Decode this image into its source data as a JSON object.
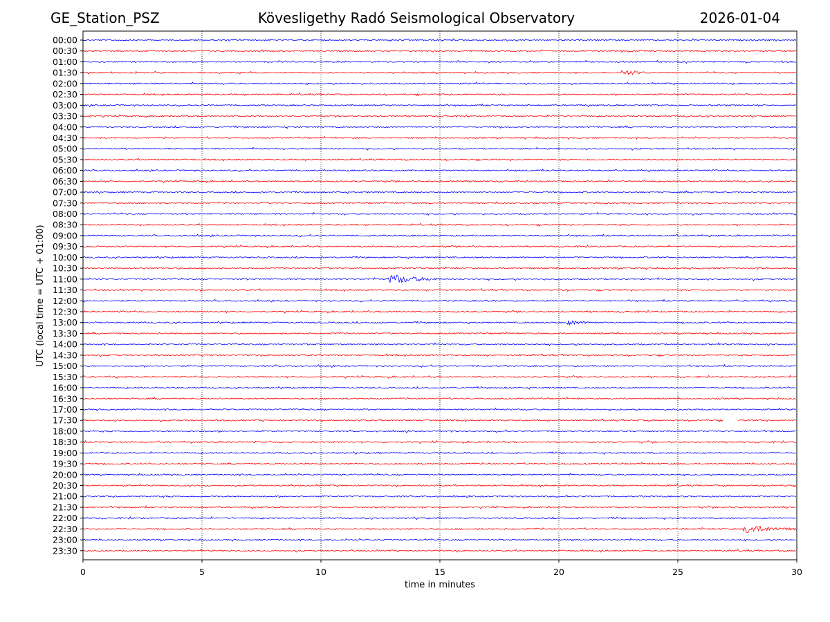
{
  "header": {
    "station": "GE_Station_PSZ",
    "title": "Kövesligethy Radó Seismological Observatory",
    "date": "2026-01-04"
  },
  "colors": {
    "even_trace": "#0000ff",
    "odd_trace": "#ff0000",
    "grid": "#000000",
    "axes": "#000000"
  },
  "chart_data": {
    "type": "line",
    "title": "Kövesligethy Radó Seismological Observatory",
    "xlabel": "time in minutes",
    "ylabel": "UTC (local time = UTC + 01:00)",
    "xlim": [
      0,
      30
    ],
    "x_ticks": [
      0,
      5,
      10,
      15,
      20,
      25,
      30
    ],
    "grid": "vertical dotted lines at x ticks",
    "row_labels": [
      "00:00",
      "00:30",
      "01:00",
      "01:30",
      "02:00",
      "02:30",
      "03:00",
      "03:30",
      "04:00",
      "04:30",
      "05:00",
      "05:30",
      "06:00",
      "06:30",
      "07:00",
      "07:30",
      "08:00",
      "08:30",
      "09:00",
      "09:30",
      "10:00",
      "10:30",
      "11:00",
      "11:30",
      "12:00",
      "12:30",
      "13:00",
      "13:30",
      "14:00",
      "14:30",
      "15:00",
      "15:30",
      "16:00",
      "16:30",
      "17:00",
      "17:30",
      "18:00",
      "18:30",
      "19:00",
      "19:30",
      "20:00",
      "20:30",
      "21:00",
      "21:30",
      "22:00",
      "22:30",
      "23:00",
      "23:30"
    ],
    "trace_colors": "alternating blue (on the hour) / red (half hour)",
    "events": [
      {
        "row": "01:30",
        "start_min": 22.6,
        "duration_min": 1.2,
        "amplitude": 4
      },
      {
        "row": "11:00",
        "start_min": 12.8,
        "duration_min": 2.2,
        "amplitude": 7
      },
      {
        "row": "13:00",
        "start_min": 20.3,
        "duration_min": 1.5,
        "amplitude": 3
      },
      {
        "row": "22:30",
        "start_min": 27.7,
        "duration_min": 2.3,
        "amplitude": 6
      }
    ],
    "gaps": [
      {
        "row": "17:30",
        "start_min": 26.9,
        "end_min": 27.5
      }
    ]
  }
}
